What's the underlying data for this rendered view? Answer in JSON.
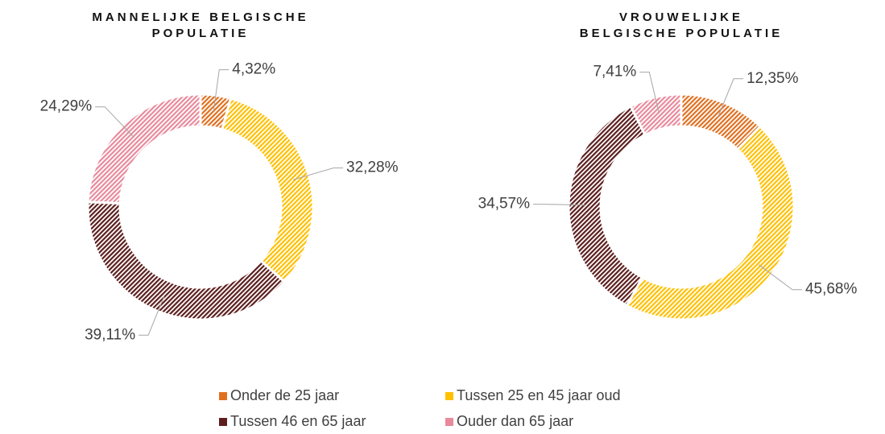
{
  "chart_data": {
    "type": "donut",
    "categories": [
      "Onder de 25 jaar",
      "Tussen 25 en 45 jaar oud",
      "Tussen 46 en 65 jaar",
      "Ouder dan 65 jaar"
    ],
    "colors": [
      "#e07020",
      "#ffc000",
      "#5c1e1e",
      "#e88a9c"
    ],
    "series": [
      {
        "name": "MANNELIJKE BELGISCHE POPULATIE",
        "values": [
          4.32,
          32.28,
          39.11,
          24.29
        ],
        "value_labels": [
          "4,32%",
          "32,28%",
          "39,11%",
          "24,29%"
        ]
      },
      {
        "name": "VROUWELIJKE BELGISCHE POPULATIE",
        "values": [
          12.35,
          45.68,
          34.57,
          7.41
        ],
        "value_labels": [
          "12,35%",
          "45,68%",
          "34,57%",
          "7,41%"
        ]
      }
    ]
  }
}
